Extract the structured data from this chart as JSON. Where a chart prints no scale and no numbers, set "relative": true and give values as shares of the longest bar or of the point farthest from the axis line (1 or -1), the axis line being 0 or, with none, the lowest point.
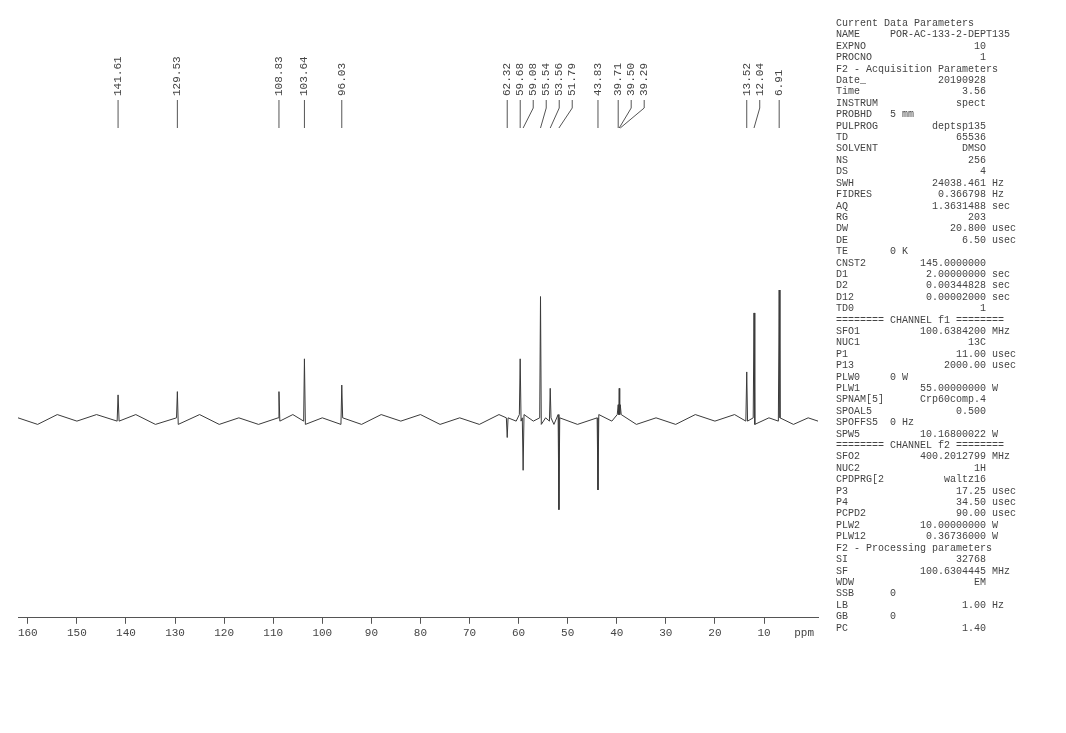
{
  "chart_data": {
    "type": "line",
    "relative": true,
    "xlabel": "ppm",
    "xlim": [
      162,
      -1
    ],
    "xticks": [
      160,
      150,
      140,
      130,
      120,
      110,
      100,
      90,
      80,
      70,
      60,
      50,
      40,
      30,
      20,
      10
    ],
    "grid": false,
    "legend": false,
    "marker": "none",
    "line_style": "solid",
    "tick_labels": "x",
    "series": [
      {
        "color": "#3a3a3a",
        "x": [
          162,
          158,
          154,
          150,
          146,
          141.8,
          141.61,
          141.4,
          138,
          134,
          129.7,
          129.53,
          129.35,
          125,
          121,
          117,
          113,
          109,
          108.83,
          108.65,
          106,
          103.8,
          103.64,
          103.45,
          100,
          96.2,
          96.03,
          95.85,
          92,
          88,
          84,
          80,
          76,
          72,
          68,
          64,
          62.5,
          62.32,
          62.15,
          60.5,
          59.85,
          59.68,
          59.5,
          59.25,
          59.08,
          58.9,
          57,
          55.7,
          55.54,
          55.38,
          54.5,
          53.72,
          53.56,
          53.4,
          52.8,
          51.95,
          51.79,
          51.62,
          48,
          44,
          43.83,
          43.66,
          41,
          39.9,
          39.71,
          39.6,
          39.5,
          39.4,
          39.29,
          39.1,
          36,
          32,
          28,
          24,
          20,
          16,
          13.7,
          13.52,
          13.35,
          12.2,
          12.04,
          11.88,
          9,
          7.08,
          6.91,
          6.75,
          4,
          1,
          -1
        ],
        "values": [
          0.61,
          0.59,
          0.62,
          0.6,
          0.62,
          0.6,
          0.68,
          0.6,
          0.62,
          0.59,
          0.61,
          0.69,
          0.59,
          0.62,
          0.59,
          0.61,
          0.59,
          0.61,
          0.69,
          0.6,
          0.62,
          0.6,
          0.79,
          0.59,
          0.61,
          0.59,
          0.71,
          0.61,
          0.59,
          0.62,
          0.6,
          0.62,
          0.59,
          0.61,
          0.59,
          0.62,
          0.61,
          0.55,
          0.61,
          0.6,
          0.62,
          0.79,
          0.6,
          0.61,
          0.45,
          0.62,
          0.6,
          0.61,
          0.98,
          0.59,
          0.61,
          0.6,
          0.7,
          0.61,
          0.59,
          0.62,
          0.33,
          0.61,
          0.59,
          0.61,
          0.39,
          0.62,
          0.6,
          0.62,
          0.65,
          0.62,
          0.7,
          0.62,
          0.65,
          0.62,
          0.59,
          0.61,
          0.59,
          0.62,
          0.6,
          0.62,
          0.6,
          0.75,
          0.6,
          0.61,
          0.93,
          0.59,
          0.61,
          0.6,
          1,
          0.61,
          0.59,
          0.61,
          0.6
        ]
      }
    ],
    "annotations": [
      {
        "text": "141.61",
        "x": 141.61
      },
      {
        "text": "129.53",
        "x": 129.53
      },
      {
        "text": "108.83",
        "x": 108.83
      },
      {
        "text": "103.64",
        "x": 103.64
      },
      {
        "text": "96.03",
        "x": 96.03
      },
      {
        "text": "62.32",
        "x": 62.32
      },
      {
        "text": "59.68",
        "x": 59.68
      },
      {
        "text": "59.08",
        "x": 59.08
      },
      {
        "text": "55.54",
        "x": 55.54
      },
      {
        "text": "53.56",
        "x": 53.56
      },
      {
        "text": "51.79",
        "x": 51.79
      },
      {
        "text": "43.83",
        "x": 43.83
      },
      {
        "text": "39.71",
        "x": 39.71
      },
      {
        "text": "39.50",
        "x": 39.5
      },
      {
        "text": "39.29",
        "x": 39.29
      },
      {
        "text": "13.52",
        "x": 13.52
      },
      {
        "text": "12.04",
        "x": 12.04
      },
      {
        "text": "6.91",
        "x": 6.91
      },
      "Current Data Parameters",
      "NAME     POR-AC-133-2-DEPT135",
      "EXPNO                  10",
      "PROCNO                  1",
      "F2 - Acquisition Parameters",
      "Date_            20190928",
      "Time                 3.56",
      "INSTRUM             spect",
      "PROBHD   5 mm",
      "PULPROG         deptsp135",
      "TD                  65536",
      "SOLVENT              DMSO",
      "NS                    256",
      "DS                      4",
      "SWH             24038.461 Hz",
      "FIDRES           0.366798 Hz",
      "AQ              1.3631488 sec",
      "RG                    203",
      "DW                 20.800 usec",
      "DE                   6.50 usec",
      "TE       0 K",
      "CNST2         145.0000000",
      "D1             2.00000000 sec",
      "D2             0.00344828 sec",
      "D12            0.00002000 sec",
      "TD0                     1",
      "======== CHANNEL f1 ========",
      "SFO1          100.6384200 MHz",
      "NUC1                  13C",
      "P1                  11.00 usec",
      "P13               2000.00 usec",
      "PLW0     0 W",
      "PLW1          55.00000000 W",
      "SPNAM[5]      Crp60comp.4",
      "SPOAL5              0.500",
      "SPOFFS5  0 Hz",
      "SPW5          10.16800022 W",
      "======== CHANNEL f2 ========",
      "SFO2          400.2012799 MHz",
      "NUC2                   1H",
      "CPDPRG[2          waltz16",
      "P3                  17.25 usec",
      "P4                  34.50 usec",
      "PCPD2               90.00 usec",
      "PLW2          10.00000000 W",
      "PLW12          0.36736000 W",
      "F2 - Processing parameters",
      "SI                  32768",
      "SF            100.6304445 MHz",
      "WDW                    EM",
      "SSB      0",
      "LB                   1.00 Hz",
      "GB       0",
      "PC                   1.40"
    ]
  }
}
